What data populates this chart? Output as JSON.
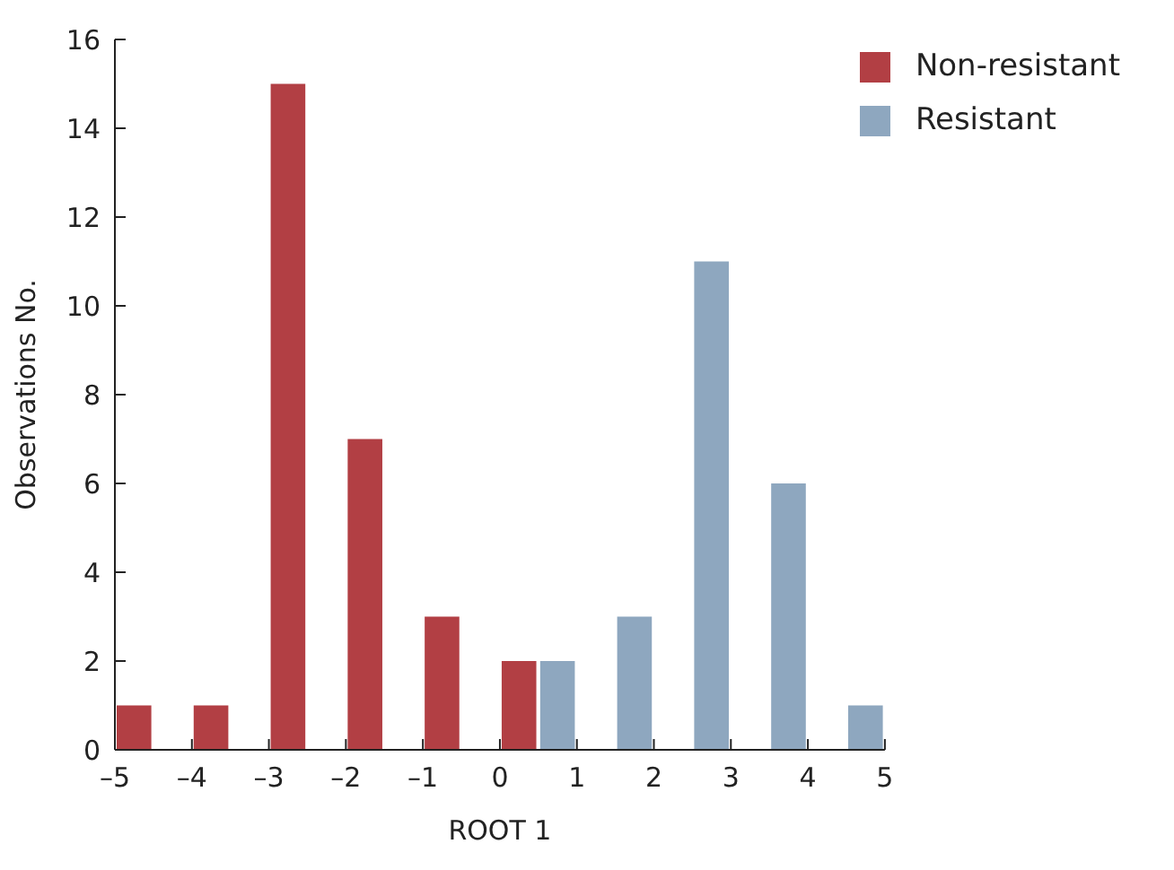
{
  "chart_data": {
    "type": "bar",
    "xlabel": "ROOT 1",
    "ylabel": "Observations No.",
    "series": [
      {
        "name": "Non-resistant",
        "color": "#b23f44",
        "x": [
          -4.75,
          -3.75,
          -2.75,
          -1.75,
          -0.75,
          0.25
        ],
        "values": [
          1,
          1,
          15,
          7,
          3,
          2
        ]
      },
      {
        "name": "Resistant",
        "color": "#8ea7bf",
        "x": [
          0.75,
          1.75,
          2.75,
          3.75,
          4.75
        ],
        "values": [
          2,
          3,
          11,
          6,
          1
        ]
      }
    ],
    "xlim": [
      -5,
      5
    ],
    "xticks": [
      {
        "value": -5,
        "label": "–5"
      },
      {
        "value": -4,
        "label": "–4"
      },
      {
        "value": -3,
        "label": "–3"
      },
      {
        "value": -2,
        "label": "–2"
      },
      {
        "value": -1,
        "label": "–1"
      },
      0,
      1,
      2,
      3,
      4,
      5
    ],
    "ylim": [
      0,
      16
    ],
    "yticks": [
      0,
      2,
      4,
      6,
      8,
      10,
      12,
      14,
      16
    ],
    "grid": false,
    "legend": "top right"
  }
}
